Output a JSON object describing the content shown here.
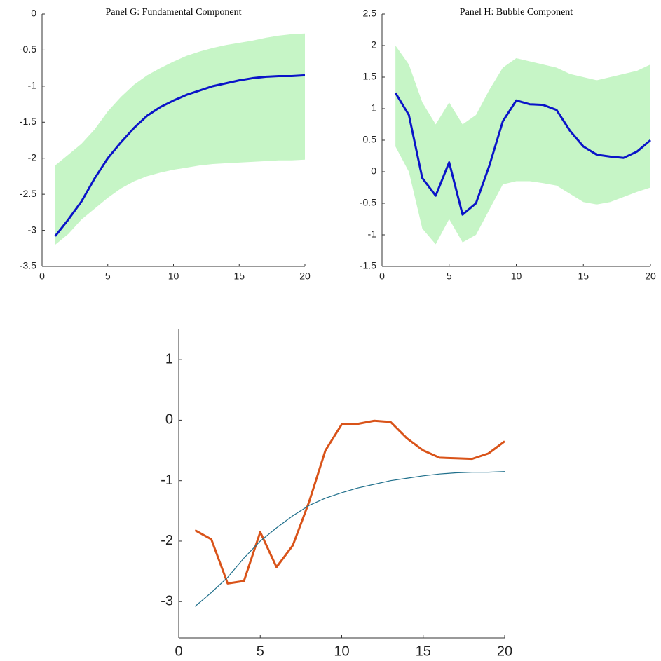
{
  "chart_data": [
    {
      "type": "line",
      "title": "Panel G: Fundamental Component",
      "x": [
        1,
        2,
        3,
        4,
        5,
        6,
        7,
        8,
        9,
        10,
        11,
        12,
        13,
        14,
        15,
        16,
        17,
        18,
        19,
        20
      ],
      "values": [
        -3.08,
        -2.85,
        -2.6,
        -2.28,
        -2.0,
        -1.78,
        -1.58,
        -1.41,
        -1.29,
        -1.2,
        -1.12,
        -1.06,
        -1.0,
        -0.96,
        -0.92,
        -0.89,
        -0.87,
        -0.86,
        -0.86,
        -0.85
      ],
      "upper": [
        -2.1,
        -1.95,
        -1.8,
        -1.6,
        -1.35,
        -1.15,
        -0.98,
        -0.85,
        -0.75,
        -0.66,
        -0.58,
        -0.52,
        -0.47,
        -0.43,
        -0.4,
        -0.37,
        -0.33,
        -0.3,
        -0.28,
        -0.27
      ],
      "lower": [
        -3.2,
        -3.05,
        -2.85,
        -2.7,
        -2.55,
        -2.42,
        -2.32,
        -2.25,
        -2.2,
        -2.16,
        -2.13,
        -2.1,
        -2.08,
        -2.07,
        -2.06,
        -2.05,
        -2.04,
        -2.03,
        -2.03,
        -2.02
      ],
      "color": "#0a14c8",
      "band_color": "#c6f5c6",
      "xlim": [
        0,
        20
      ],
      "xticks": [
        0,
        5,
        10,
        15,
        20
      ],
      "ylim": [
        -3.5,
        0
      ],
      "yticks": [
        -3.5,
        -3,
        -2.5,
        -2,
        -1.5,
        -1,
        -0.5,
        0
      ]
    },
    {
      "type": "line",
      "title": "Panel H: Bubble Component",
      "x": [
        1,
        2,
        3,
        4,
        5,
        6,
        7,
        8,
        9,
        10,
        11,
        12,
        13,
        14,
        15,
        16,
        17,
        18,
        19,
        20
      ],
      "values": [
        1.25,
        0.9,
        -0.1,
        -0.38,
        0.15,
        -0.68,
        -0.5,
        0.1,
        0.8,
        1.13,
        1.07,
        1.06,
        0.98,
        0.65,
        0.4,
        0.27,
        0.24,
        0.22,
        0.32,
        0.5
      ],
      "upper": [
        2.0,
        1.7,
        1.1,
        0.75,
        1.1,
        0.75,
        0.9,
        1.3,
        1.65,
        1.8,
        1.75,
        1.7,
        1.65,
        1.55,
        1.5,
        1.45,
        1.5,
        1.55,
        1.6,
        1.7
      ],
      "lower": [
        0.4,
        0.0,
        -0.9,
        -1.15,
        -0.75,
        -1.12,
        -1.0,
        -0.6,
        -0.2,
        -0.15,
        -0.15,
        -0.18,
        -0.22,
        -0.35,
        -0.48,
        -0.52,
        -0.48,
        -0.4,
        -0.32,
        -0.25
      ],
      "color": "#0a14c8",
      "band_color": "#c6f5c6",
      "xlim": [
        0,
        20
      ],
      "xticks": [
        0,
        5,
        10,
        15,
        20
      ],
      "ylim": [
        -1.5,
        2.5
      ],
      "yticks": [
        -1.5,
        -1,
        -0.5,
        0,
        0.5,
        1,
        1.5,
        2,
        2.5
      ]
    },
    {
      "type": "line",
      "x": [
        1,
        2,
        3,
        4,
        5,
        6,
        7,
        8,
        9,
        10,
        11,
        12,
        13,
        14,
        15,
        16,
        17,
        18,
        19,
        20
      ],
      "series": [
        {
          "color": "#d95319",
          "values": [
            -1.82,
            -1.97,
            -2.7,
            -2.66,
            -1.85,
            -2.43,
            -2.07,
            -1.35,
            -0.5,
            -0.07,
            -0.06,
            -0.01,
            -0.03,
            -0.3,
            -0.5,
            -0.62,
            -0.63,
            -0.64,
            -0.55,
            -0.35
          ]
        },
        {
          "color": "#1f6f8b",
          "values": [
            -3.08,
            -2.85,
            -2.6,
            -2.28,
            -2.0,
            -1.78,
            -1.58,
            -1.41,
            -1.29,
            -1.2,
            -1.12,
            -1.06,
            -1.0,
            -0.96,
            -0.92,
            -0.89,
            -0.87,
            -0.86,
            -0.86,
            -0.85
          ]
        }
      ],
      "xlim": [
        0,
        20
      ],
      "xticks": [
        0,
        5,
        10,
        15,
        20
      ],
      "ylim": [
        -3.6,
        1.5
      ],
      "yticks": [
        -3,
        -2,
        -1,
        0,
        1
      ]
    }
  ]
}
